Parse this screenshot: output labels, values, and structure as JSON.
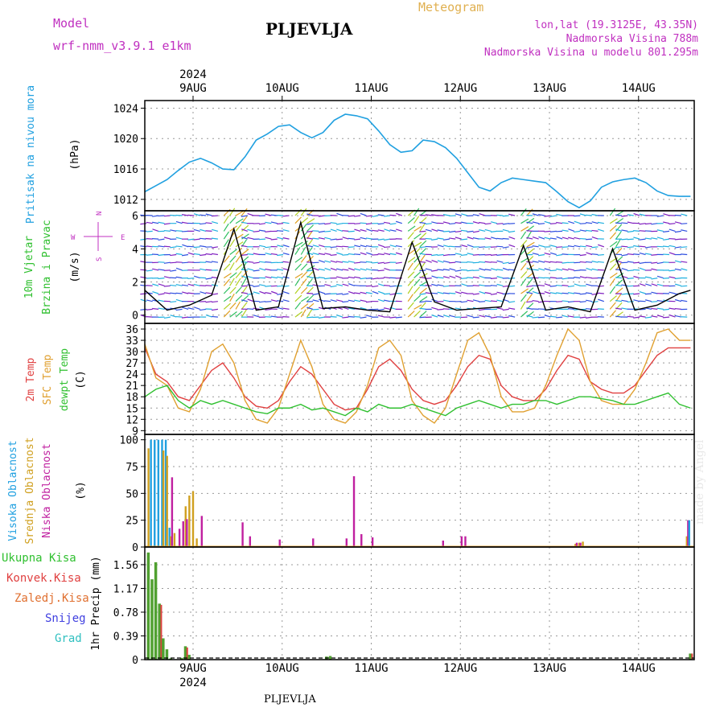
{
  "header": {
    "model_label": "Model",
    "model_name": "wrf-nmm_v3.9.1 e1km",
    "title": "PLJEVLJA",
    "meteogram": "Meteogram",
    "lonlat": "lon,lat (19.3125E, 43.35N)",
    "altitude": "Nadmorska Visina 788m",
    "altitude_model": "Nadmorska Visina u modelu 801.295m"
  },
  "footer": "PLJEVLJA",
  "credit": "made by Angel",
  "x_axis": {
    "year": "2024",
    "day_labels": [
      "9AUG",
      "10AUG",
      "11AUG",
      "12AUG",
      "13AUG",
      "14AUG"
    ]
  },
  "colors": {
    "pressure": "#20a0e0",
    "t2m": "#e04040",
    "sfc": "#e0a030",
    "dew": "#30c030",
    "high": "#20a0e0",
    "mid": "#d0a020",
    "low": "#c020a0",
    "precip_total": "#50a030",
    "precip_conv": "#e04040"
  },
  "chart_data": [
    {
      "type": "line",
      "panel": "pressure",
      "ylabel_lines": [
        "Pritisak na nivou mora"
      ],
      "unit": "(hPa)",
      "ylim": [
        1010.5,
        1025
      ],
      "yticks": [
        "1012",
        "1016",
        "1020",
        "1024"
      ],
      "x_hours": [
        0,
        3,
        6,
        9,
        12,
        15,
        18,
        21,
        24,
        27,
        30,
        33,
        36,
        39,
        42,
        45,
        48,
        51,
        54,
        57,
        60,
        63,
        66,
        69,
        72,
        75,
        78,
        81,
        84,
        87,
        90,
        93,
        96,
        99,
        102,
        105,
        108,
        111,
        114,
        117,
        120,
        123,
        126,
        129,
        132,
        135,
        138,
        141,
        144,
        147
      ],
      "series": [
        {
          "values": [
            1013,
            1013.8,
            1014.6,
            1015.8,
            1016.9,
            1017.4,
            1016.8,
            1016,
            1015.9,
            1017.6,
            1019.8,
            1020.6,
            1021.6,
            1021.8,
            1020.8,
            1020.1,
            1020.8,
            1022.4,
            1023.2,
            1023,
            1022.6,
            1021,
            1019.2,
            1018.2,
            1018.4,
            1019.8,
            1019.6,
            1018.8,
            1017.4,
            1015.5,
            1013.6,
            1013.1,
            1014.2,
            1014.8,
            1014.6,
            1014.4,
            1014.2,
            1013,
            1011.7,
            1010.9,
            1011.8,
            1013.6,
            1014.3,
            1014.6,
            1014.8,
            1014.2,
            1013.1,
            1012.5,
            1012.4,
            1012.4
          ]
        }
      ]
    },
    {
      "type": "line",
      "panel": "wind",
      "ylabel_lines": [
        "10m Vjetar",
        "Brzina i Pravac"
      ],
      "unit": "(m/s)",
      "ylim": [
        -0.5,
        6.3
      ],
      "yticks": [
        "0",
        "2",
        "4",
        "6"
      ],
      "compass": {
        "n": "N",
        "s": "S",
        "e": "E",
        "w": "W"
      },
      "x_hours": [
        0,
        6,
        12,
        18,
        24,
        30,
        36,
        42,
        48,
        54,
        60,
        66,
        72,
        78,
        84,
        90,
        96,
        102,
        108,
        114,
        120,
        126,
        132,
        138,
        144,
        147
      ],
      "series": [
        {
          "name": "speed",
          "values": [
            1.5,
            0.3,
            0.6,
            1.2,
            5.2,
            0.3,
            0.5,
            5.6,
            0.4,
            0.5,
            0.3,
            0.2,
            4.4,
            0.8,
            0.3,
            0.4,
            0.5,
            4.2,
            0.3,
            0.5,
            0.2,
            4.0,
            0.3,
            0.6,
            1.3,
            1.5
          ]
        }
      ]
    },
    {
      "type": "line",
      "panel": "temperature",
      "ylabel_lines": [
        "2m Temp",
        "SFC Temp",
        "dewpt Temp"
      ],
      "unit": "(C)",
      "ylim": [
        8,
        37.5
      ],
      "yticks": [
        "9",
        "12",
        "15",
        "18",
        "21",
        "24",
        "27",
        "30",
        "33",
        "36"
      ],
      "x_hours": [
        0,
        3,
        6,
        9,
        12,
        15,
        18,
        21,
        24,
        27,
        30,
        33,
        36,
        39,
        42,
        45,
        48,
        51,
        54,
        57,
        60,
        63,
        66,
        69,
        72,
        75,
        78,
        81,
        84,
        87,
        90,
        93,
        96,
        99,
        102,
        105,
        108,
        111,
        114,
        117,
        120,
        123,
        126,
        129,
        132,
        135,
        138,
        141,
        144,
        147
      ],
      "series": [
        {
          "name": "2m Temp",
          "values": [
            31,
            24,
            22,
            18,
            17,
            21,
            25,
            27,
            23,
            18,
            15.5,
            15,
            17,
            22,
            26,
            24,
            20,
            16,
            14.5,
            15,
            20,
            26,
            28,
            25,
            20,
            17,
            16,
            17,
            21,
            26,
            29,
            28,
            21,
            18,
            17,
            17,
            20,
            25,
            29,
            28,
            22,
            20,
            19,
            19,
            21,
            25,
            29,
            31,
            31,
            31
          ]
        },
        {
          "name": "SFC Temp",
          "values": [
            32,
            23,
            21,
            15,
            14,
            20,
            30,
            32,
            27,
            17,
            12,
            11,
            15,
            24,
            33,
            26,
            16,
            12,
            11,
            14,
            21,
            31,
            33,
            29,
            17,
            13,
            11,
            15,
            24,
            33,
            35,
            29,
            18,
            14,
            14,
            15,
            21,
            29,
            36,
            33,
            22,
            17,
            16,
            16,
            20,
            27,
            35,
            36,
            33,
            33
          ]
        },
        {
          "name": "dewpt Temp",
          "values": [
            18,
            20,
            21,
            17,
            15,
            17,
            16,
            17,
            16,
            15,
            14,
            13.5,
            15,
            15,
            16,
            14.5,
            15,
            14,
            13,
            15,
            14,
            16,
            15,
            15,
            16,
            15,
            14,
            13,
            15,
            16,
            17,
            16,
            15,
            16,
            16,
            17,
            17,
            16,
            17,
            18,
            18,
            17.5,
            17,
            16,
            16,
            17,
            18,
            19,
            16,
            15
          ]
        }
      ]
    },
    {
      "type": "bar",
      "panel": "clouds",
      "ylabel_lines": [
        "Visoka Oblacnost",
        "Srednja Oblacnost",
        "Niska Oblacnost"
      ],
      "unit": "(%)",
      "ylim": [
        0,
        105
      ],
      "yticks": [
        "0",
        "25",
        "50",
        "75",
        "100"
      ],
      "x_hours": [
        1,
        2,
        3,
        4,
        5,
        6,
        7,
        8,
        9,
        10,
        11,
        12,
        13,
        14,
        15,
        26,
        28,
        36,
        45,
        54,
        56,
        58,
        61,
        80,
        85,
        86,
        116,
        117,
        118,
        146,
        147
      ],
      "series": [
        {
          "name": "Visoka Oblacnost",
          "values": [
            0,
            100,
            100,
            100,
            100,
            100,
            18,
            0,
            0,
            0,
            0,
            0,
            0,
            0,
            0,
            0,
            0,
            0,
            0,
            0,
            0,
            0,
            0,
            0,
            0,
            0,
            0,
            0,
            0,
            0,
            25
          ]
        },
        {
          "name": "Srednja Oblacnost",
          "values": [
            92,
            0,
            0,
            0,
            90,
            85,
            10,
            13,
            0,
            0,
            38,
            48,
            52,
            8,
            0,
            0,
            0,
            0,
            0,
            0,
            0,
            0,
            0,
            0,
            0,
            0,
            3,
            4,
            5,
            10,
            0
          ]
        },
        {
          "name": "Niska Oblacnost",
          "values": [
            0,
            0,
            0,
            0,
            0,
            0,
            65,
            0,
            17,
            24,
            26,
            0,
            0,
            0,
            29,
            23,
            10,
            7,
            8,
            8,
            66,
            12,
            9,
            6,
            10,
            10,
            4,
            4,
            0,
            25,
            0
          ]
        }
      ]
    },
    {
      "type": "bar",
      "panel": "precip",
      "ylabel_lines": [
        "1hr Precip (mm)"
      ],
      "legend": [
        "Ukupna Kisa",
        "Konvek.Kisa",
        "Zaledj.Kisa",
        "Snijeg",
        "Grad"
      ],
      "ylim": [
        0,
        1.85
      ],
      "yticks": [
        "0",
        "0.39",
        "0.78",
        "1.17",
        "1.56"
      ],
      "x_hours": [
        1,
        2,
        3,
        4,
        5,
        6,
        7,
        10,
        11,
        12,
        49,
        50,
        147
      ],
      "series": [
        {
          "name": "Ukupna Kisa",
          "values": [
            1.76,
            1.32,
            1.6,
            0.92,
            0.35,
            0.17,
            0.02,
            0.03,
            0.22,
            0.08,
            0.05,
            0.06,
            0.1
          ]
        },
        {
          "name": "Konvek.Kisa",
          "values": [
            0,
            0,
            0,
            0.9,
            0,
            0,
            0,
            0,
            0.2,
            0,
            0,
            0,
            0.1
          ]
        }
      ]
    }
  ]
}
